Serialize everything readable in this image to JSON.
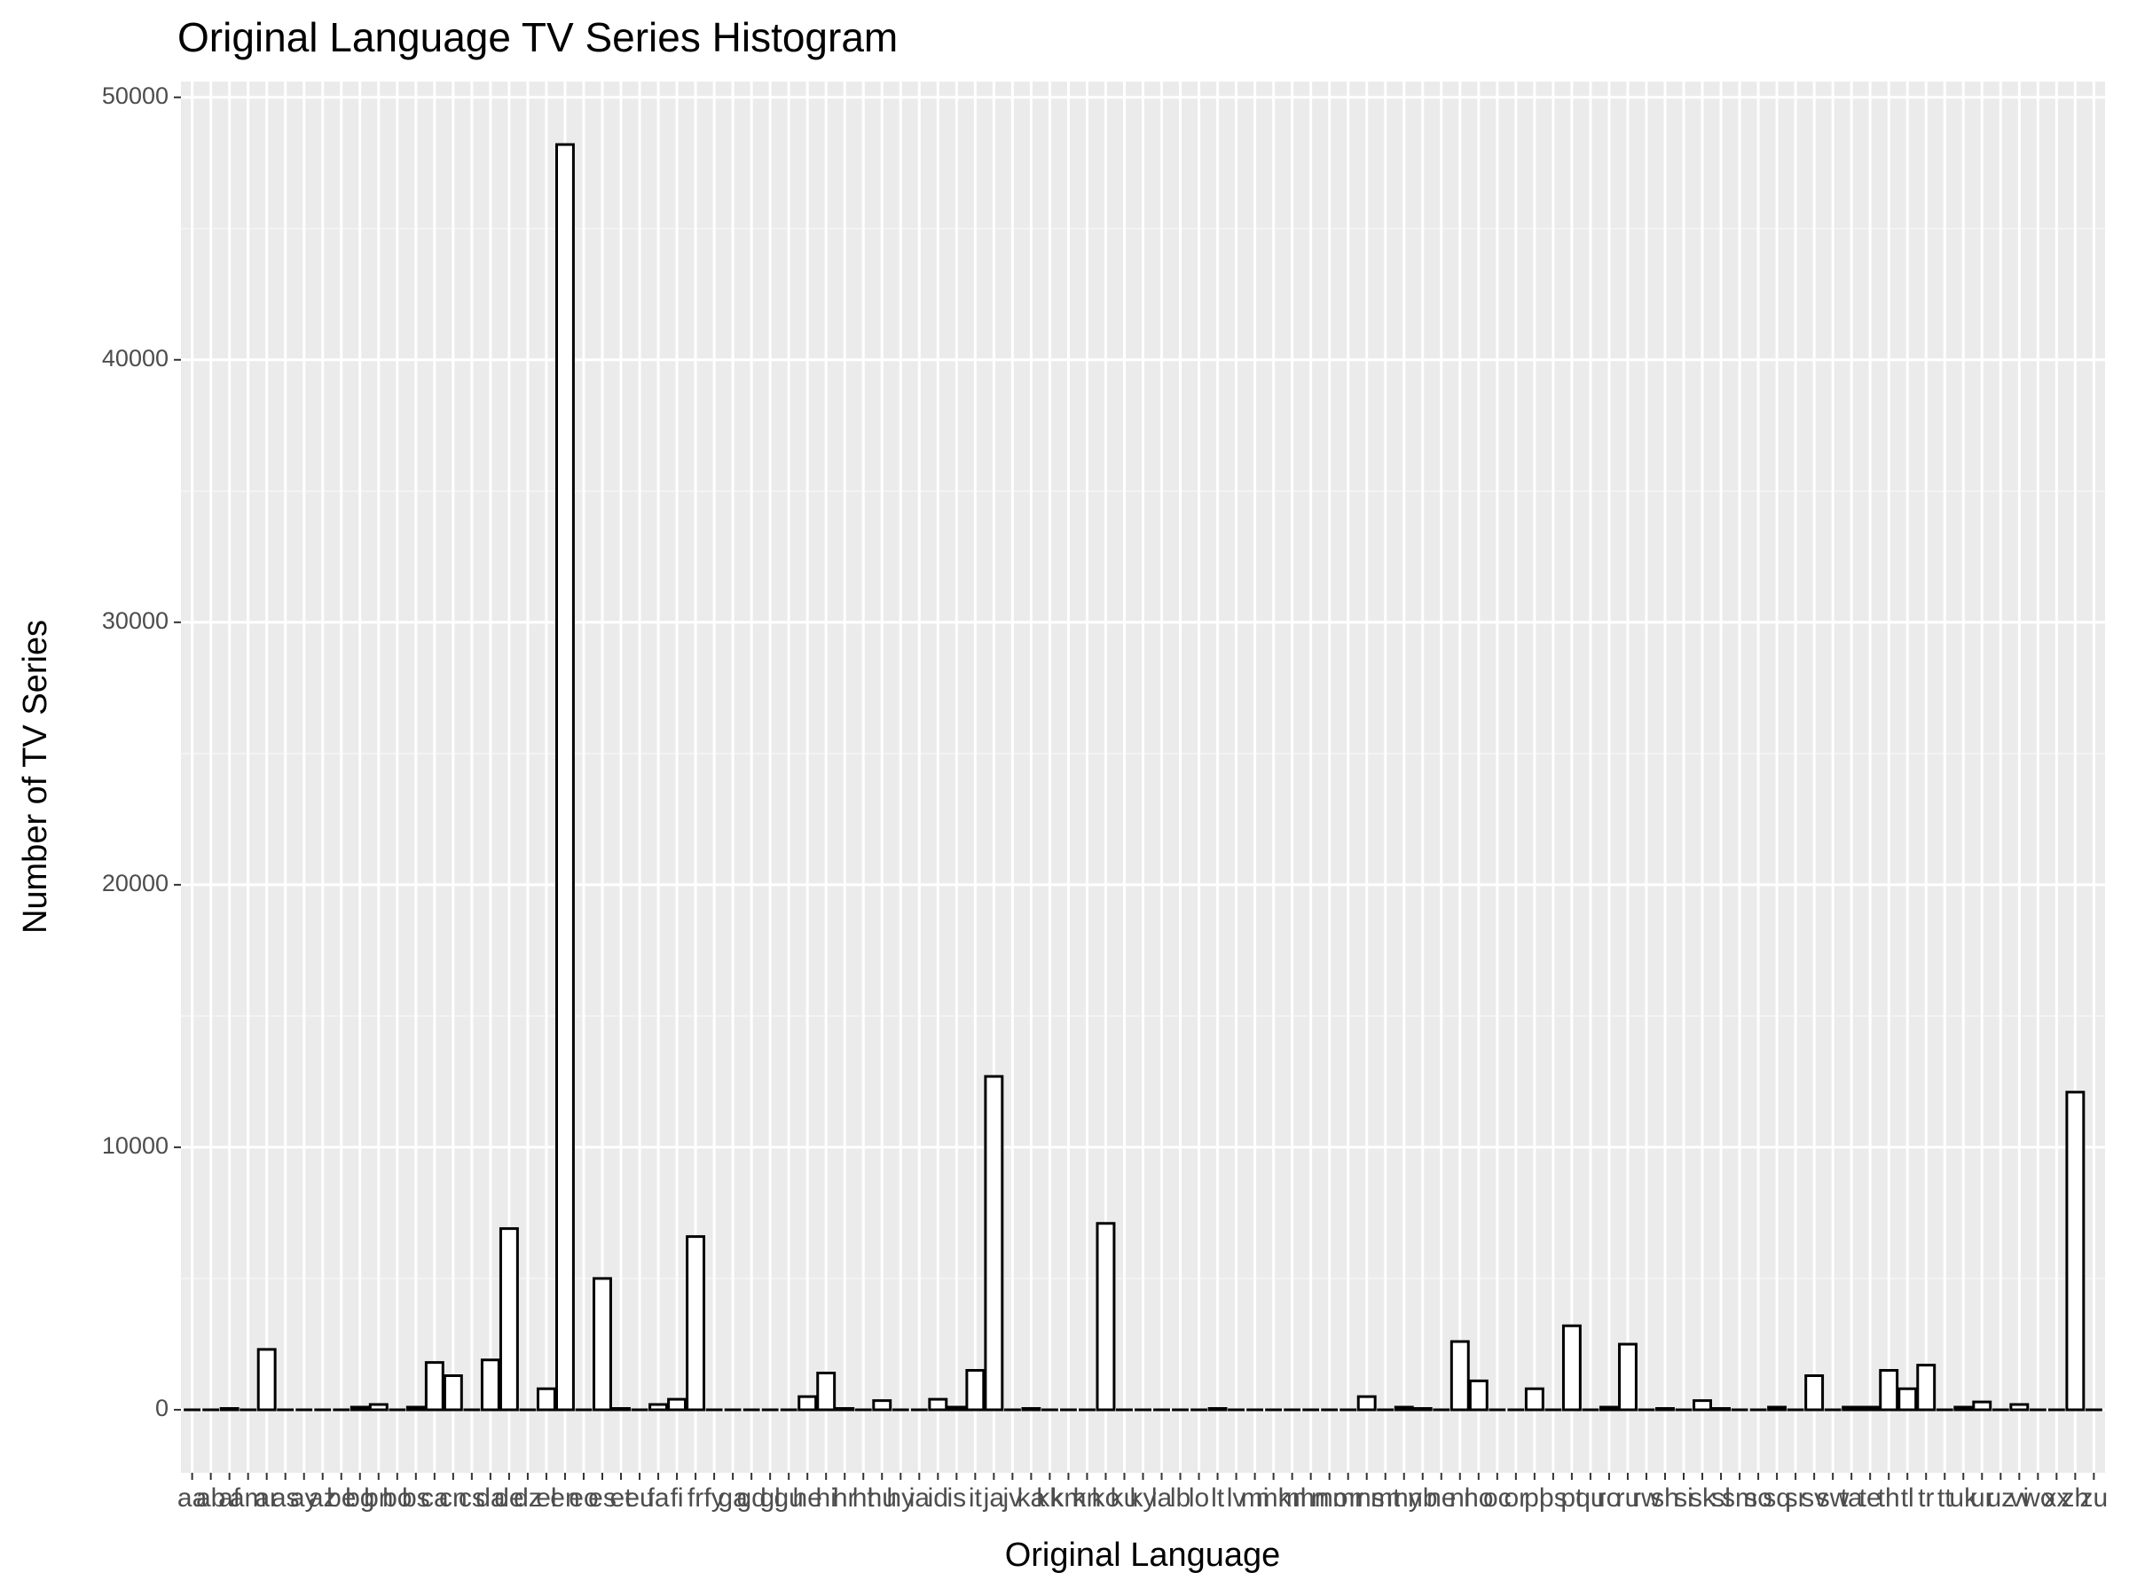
{
  "chart_data": {
    "type": "bar",
    "title": "Original Language TV Series Histogram",
    "xlabel": "Original Language",
    "ylabel": "Number of TV Series",
    "categories": [
      "aa",
      "ab",
      "af",
      "am",
      "ar",
      "as",
      "ay",
      "az",
      "be",
      "bg",
      "bn",
      "bo",
      "bs",
      "ca",
      "cn",
      "cs",
      "da",
      "de",
      "dz",
      "el",
      "en",
      "eo",
      "es",
      "et",
      "eu",
      "fa",
      "fi",
      "fr",
      "fy",
      "ga",
      "gd",
      "gl",
      "gu",
      "he",
      "hi",
      "hr",
      "ht",
      "hu",
      "hy",
      "ia",
      "id",
      "is",
      "it",
      "ja",
      "jv",
      "ka",
      "kk",
      "km",
      "kn",
      "ko",
      "ku",
      "ky",
      "la",
      "lb",
      "lo",
      "lt",
      "lv",
      "mi",
      "mk",
      "ml",
      "mn",
      "mo",
      "mr",
      "ms",
      "mt",
      "my",
      "nb",
      "ne",
      "nl",
      "no",
      "oc",
      "or",
      "pl",
      "ps",
      "pt",
      "qu",
      "ro",
      "ru",
      "rw",
      "sh",
      "si",
      "sk",
      "sl",
      "sm",
      "so",
      "sq",
      "sr",
      "sv",
      "sw",
      "ta",
      "te",
      "th",
      "tl",
      "tr",
      "tt",
      "uk",
      "ur",
      "uz",
      "vi",
      "wo",
      "xx",
      "zh",
      "zu"
    ],
    "values": [
      0,
      0,
      50,
      0,
      2300,
      0,
      0,
      0,
      0,
      100,
      200,
      0,
      100,
      1800,
      1300,
      0,
      1900,
      6900,
      0,
      800,
      48200,
      0,
      5000,
      50,
      0,
      200,
      400,
      6600,
      0,
      0,
      0,
      0,
      0,
      500,
      1400,
      50,
      0,
      350,
      0,
      0,
      400,
      100,
      1500,
      12700,
      0,
      50,
      0,
      0,
      0,
      7100,
      0,
      0,
      0,
      0,
      0,
      50,
      0,
      0,
      0,
      0,
      0,
      0,
      0,
      500,
      0,
      100,
      50,
      0,
      2600,
      1100,
      0,
      0,
      800,
      0,
      3200,
      0,
      100,
      2500,
      0,
      50,
      0,
      350,
      50,
      0,
      0,
      100,
      0,
      1300,
      0,
      100,
      100,
      1500,
      800,
      1700,
      0,
      100,
      300,
      0,
      200,
      0,
      0,
      12100,
      0
    ],
    "color": "#ffffff",
    "edgecolor": "#000000",
    "ylim": [
      -2400,
      50600
    ],
    "yticks": [
      0,
      10000,
      20000,
      30000,
      40000,
      50000
    ],
    "grid": true
  }
}
